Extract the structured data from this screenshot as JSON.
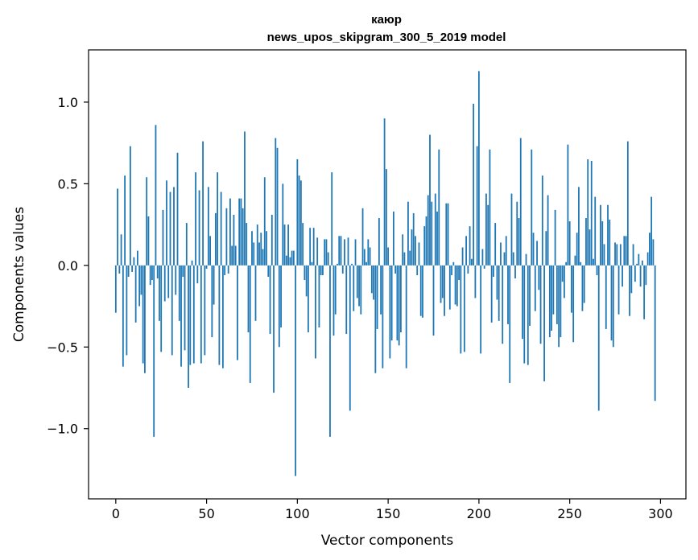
{
  "chart_data": {
    "type": "bar",
    "title": "каюр",
    "subtitle": "news_upos_skipgram_300_5_2019 model",
    "xlabel": "Vector components",
    "ylabel": "Components values",
    "xlim": [
      -15,
      314
    ],
    "ylim": [
      -1.43,
      1.32
    ],
    "xticks": [
      0,
      50,
      100,
      150,
      200,
      250,
      300
    ],
    "xtick_labels": [
      "0",
      "50",
      "100",
      "150",
      "200",
      "250",
      "300"
    ],
    "yticks": [
      -1.0,
      -0.5,
      0.0,
      0.5,
      1.0
    ],
    "ytick_labels": [
      "−1.0",
      "−0.5",
      "0.0",
      "0.5",
      "1.0"
    ],
    "bar_color": "#1f77b4",
    "grid": false,
    "values": [
      -0.29,
      0.47,
      -0.05,
      0.19,
      -0.62,
      0.55,
      -0.55,
      -0.07,
      0.73,
      -0.04,
      0.05,
      -0.35,
      0.09,
      -0.25,
      -0.18,
      -0.6,
      -0.66,
      0.54,
      0.3,
      -0.12,
      -0.09,
      -1.05,
      0.86,
      -0.08,
      -0.34,
      -0.53,
      0.34,
      -0.22,
      0.52,
      -0.2,
      0.45,
      -0.55,
      0.48,
      -0.18,
      0.69,
      -0.34,
      -0.62,
      -0.07,
      -0.52,
      0.26,
      -0.75,
      -0.61,
      0.03,
      -0.6,
      0.57,
      -0.11,
      0.46,
      -0.6,
      0.76,
      -0.55,
      -0.02,
      0.48,
      0.18,
      -0.44,
      -0.24,
      0.32,
      0.57,
      -0.61,
      0.45,
      -0.63,
      -0.06,
      0.35,
      -0.05,
      0.41,
      0.12,
      0.31,
      0.12,
      -0.58,
      0.41,
      0.41,
      0.35,
      0.82,
      0.26,
      -0.41,
      -0.72,
      0.21,
      0.14,
      -0.34,
      0.25,
      0.14,
      0.2,
      0.1,
      0.54,
      0.21,
      -0.07,
      -0.42,
      0.31,
      -0.78,
      0.78,
      0.72,
      -0.5,
      -0.38,
      0.5,
      0.25,
      0.06,
      0.25,
      0.05,
      0.09,
      0.09,
      -1.29,
      0.65,
      0.55,
      0.52,
      0.26,
      -0.09,
      -0.19,
      -0.41,
      0.23,
      0.02,
      0.23,
      -0.57,
      0.17,
      -0.38,
      -0.06,
      -0.06,
      0.16,
      0.16,
      0.08,
      -1.05,
      0.57,
      -0.43,
      -0.3,
      0.01,
      0.18,
      0.18,
      -0.05,
      0.16,
      -0.42,
      0.17,
      -0.89,
      0.01,
      -0.28,
      0.16,
      -0.2,
      -0.25,
      -0.3,
      0.35,
      0.1,
      0.02,
      0.16,
      0.11,
      -0.17,
      -0.21,
      -0.66,
      -0.39,
      0.29,
      -0.3,
      -0.63,
      0.9,
      0.59,
      0.11,
      -0.57,
      -0.46,
      0.33,
      -0.05,
      -0.46,
      -0.49,
      -0.41,
      0.19,
      0.08,
      -0.63,
      0.39,
      0.09,
      0.22,
      0.32,
      0.18,
      -0.06,
      0.14,
      -0.31,
      -0.32,
      0.24,
      0.3,
      0.43,
      0.8,
      0.39,
      -0.43,
      0.44,
      0.33,
      0.71,
      -0.23,
      -0.2,
      -0.31,
      0.38,
      0.38,
      -0.27,
      -0.06,
      0.02,
      -0.24,
      -0.25,
      -0.09,
      -0.54,
      0.11,
      -0.53,
      0.18,
      -0.05,
      0.24,
      0.04,
      0.99,
      -0.2,
      0.73,
      1.19,
      -0.54,
      0.1,
      -0.02,
      0.44,
      0.37,
      0.71,
      -0.35,
      -0.07,
      0.26,
      -0.21,
      -0.34,
      0.14,
      -0.48,
      0.08,
      0.18,
      -0.36,
      -0.72,
      0.44,
      0.08,
      -0.08,
      0.39,
      0.29,
      0.78,
      -0.45,
      -0.6,
      0.07,
      -0.61,
      -0.37,
      0.71,
      0.2,
      -0.28,
      0.15,
      -0.15,
      -0.48,
      0.55,
      -0.71,
      0.21,
      0.43,
      -0.44,
      -0.4,
      -0.3,
      0.34,
      -0.36,
      -0.5,
      -0.44,
      -0.1,
      -0.2,
      0.02,
      0.74,
      0.27,
      -0.29,
      -0.47,
      0.06,
      0.2,
      0.48,
      0.02,
      -0.28,
      -0.23,
      0.29,
      0.65,
      0.22,
      0.64,
      0.04,
      0.42,
      -0.06,
      -0.89,
      0.37,
      0.27,
      0.13,
      -0.39,
      0.37,
      0.28,
      -0.46,
      -0.5,
      0.14,
      0.13,
      -0.3,
      0.13,
      -0.13,
      0.18,
      0.18,
      0.76,
      -0.31,
      -0.17,
      0.13,
      -0.1,
      0.01,
      0.07,
      -0.13,
      0.03,
      -0.33,
      -0.12,
      0.08,
      0.2,
      0.42,
      0.16,
      -0.83
    ]
  }
}
